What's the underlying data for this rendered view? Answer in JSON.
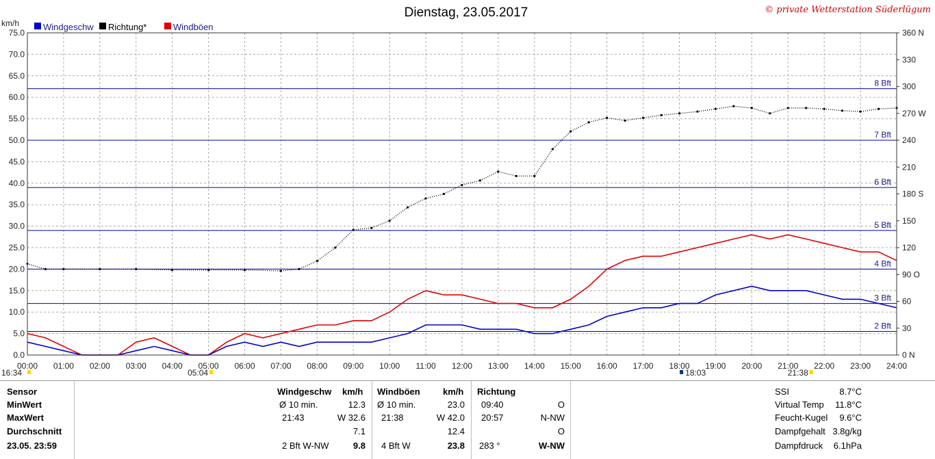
{
  "title": "Dienstag, 23.05.2017",
  "copyright": "© private Wetterstation Süderlügum",
  "legend": [
    {
      "label": "Windgeschw",
      "color": "#0000cc"
    },
    {
      "label": "Richtung*",
      "color": "#000000"
    },
    {
      "label": "Windböen",
      "color": "#e00000"
    }
  ],
  "chart_data": {
    "type": "line",
    "left_axis": {
      "unit": "km/h",
      "ylim": [
        0,
        75
      ],
      "ticks": [
        "0.0",
        "5.0",
        "10.0",
        "15.0",
        "20.0",
        "25.0",
        "30.0",
        "35.0",
        "40.0",
        "45.0",
        "50.0",
        "55.0",
        "60.0",
        "65.0",
        "70.0",
        "75.0"
      ]
    },
    "right_axis": {
      "unit": "°",
      "ylim": [
        0,
        360
      ],
      "ticks": [
        {
          "v": 0,
          "label": "0 N"
        },
        {
          "v": 30,
          "label": "30"
        },
        {
          "v": 60,
          "label": "60"
        },
        {
          "v": 90,
          "label": "90 O"
        },
        {
          "v": 120,
          "label": "120"
        },
        {
          "v": 150,
          "label": "150"
        },
        {
          "v": 180,
          "label": "180 S"
        },
        {
          "v": 210,
          "label": "210"
        },
        {
          "v": 240,
          "label": "240"
        },
        {
          "v": 270,
          "label": "270 W"
        },
        {
          "v": 300,
          "label": "300"
        },
        {
          "v": 330,
          "label": "330"
        },
        {
          "v": 360,
          "label": "360 N"
        }
      ]
    },
    "x_ticks": [
      "00:00",
      "01:00",
      "02:00",
      "03:00",
      "04:00",
      "05:00",
      "06:00",
      "07:00",
      "08:00",
      "09:00",
      "10:00",
      "11:00",
      "12:00",
      "13:00",
      "14:00",
      "15:00",
      "16:00",
      "17:00",
      "18:00",
      "19:00",
      "20:00",
      "21:00",
      "22:00",
      "23:00",
      "24:00"
    ],
    "beaufort": [
      {
        "label": "2 Bft",
        "kmh": 5.5
      },
      {
        "label": "3 Bft",
        "kmh": 12
      },
      {
        "label": "4 Bft",
        "kmh": 20
      },
      {
        "label": "5 Bft",
        "kmh": 29
      },
      {
        "label": "6 Bft",
        "kmh": 39
      },
      {
        "label": "7 Bft",
        "kmh": 50
      },
      {
        "label": "8 Bft",
        "kmh": 62
      }
    ],
    "markers": [
      "16:34",
      "05:04",
      "18:03",
      "21:38"
    ],
    "series": [
      {
        "name": "Windgeschw",
        "color": "#0000cc",
        "x": [
          0,
          0.5,
          1,
          1.5,
          2,
          2.5,
          3,
          3.5,
          4,
          4.5,
          5,
          5.5,
          6,
          6.5,
          7,
          7.5,
          8,
          8.5,
          9,
          9.5,
          10,
          10.5,
          11,
          11.5,
          12,
          12.5,
          13,
          13.5,
          14,
          14.5,
          15,
          15.5,
          16,
          16.5,
          17,
          17.5,
          18,
          18.5,
          19,
          19.5,
          20,
          20.5,
          21,
          21.5,
          22,
          22.5,
          23,
          23.5,
          24
        ],
        "values": [
          3,
          2,
          1,
          0,
          0,
          0,
          1,
          2,
          1,
          0,
          0,
          2,
          3,
          2,
          3,
          2,
          3,
          3,
          3,
          3,
          4,
          5,
          7,
          7,
          7,
          6,
          6,
          6,
          5,
          5,
          6,
          7,
          9,
          10,
          11,
          11,
          12,
          12,
          14,
          15,
          16,
          15,
          15,
          15,
          14,
          13,
          13,
          12,
          11
        ]
      },
      {
        "name": "Windböen",
        "color": "#e00000",
        "x": [
          0,
          0.5,
          1,
          1.5,
          2,
          2.5,
          3,
          3.5,
          4,
          4.5,
          5,
          5.5,
          6,
          6.5,
          7,
          7.5,
          8,
          8.5,
          9,
          9.5,
          10,
          10.5,
          11,
          11.5,
          12,
          12.5,
          13,
          13.5,
          14,
          14.5,
          15,
          15.5,
          16,
          16.5,
          17,
          17.5,
          18,
          18.5,
          19,
          19.5,
          20,
          20.5,
          21,
          21.5,
          22,
          22.5,
          23,
          23.5,
          24
        ],
        "values": [
          5,
          4,
          2,
          0,
          0,
          0,
          3,
          4,
          2,
          0,
          0,
          3,
          5,
          4,
          5,
          6,
          7,
          7,
          8,
          8,
          10,
          13,
          15,
          14,
          14,
          13,
          12,
          12,
          11,
          11,
          13,
          16,
          20,
          22,
          23,
          23,
          24,
          25,
          26,
          27,
          28,
          27,
          28,
          27,
          26,
          25,
          24,
          24,
          22
        ]
      },
      {
        "name": "Richtung*",
        "color": "#000000",
        "x": [
          0,
          0.5,
          1,
          2,
          3,
          4,
          5,
          6,
          7,
          7.5,
          8,
          8.5,
          9,
          9.5,
          10,
          10.5,
          11,
          11.5,
          12,
          12.5,
          13,
          13.5,
          14,
          14.5,
          15,
          15.5,
          16,
          16.5,
          17,
          17.5,
          18,
          18.5,
          19,
          19.5,
          20,
          20.5,
          21,
          21.5,
          22,
          22.5,
          23,
          23.5,
          24
        ],
        "values": [
          102,
          96,
          96,
          96,
          96,
          95,
          95,
          95,
          94,
          96,
          105,
          120,
          140,
          142,
          150,
          165,
          175,
          180,
          190,
          195,
          205,
          200,
          200,
          230,
          250,
          260,
          265,
          262,
          265,
          268,
          270,
          272,
          275,
          278,
          276,
          270,
          276,
          276,
          275,
          273,
          272,
          275,
          276
        ]
      }
    ]
  },
  "stats": {
    "sensor": {
      "header": "Sensor",
      "min": "MinWert",
      "max": "MaxWert",
      "avg": "Durchschnitt",
      "now": "23.05. 23:59"
    },
    "wind": {
      "header": "Windgeschw",
      "unit": "km/h",
      "min_label": "Ø 10 min.",
      "min_val": "12.3",
      "max_time": "21:43",
      "max_val": "W 32.6",
      "avg_val": "7.1",
      "now_label": "2 Bft W-NW",
      "now_val": "9.8"
    },
    "gust": {
      "header": "Windböen",
      "unit": "km/h",
      "min_label": "Ø 10 min.",
      "min_val": "23.0",
      "max_time": "21:38",
      "max_val": "W 42.0",
      "avg_val": "12.4",
      "now_label": "4 Bft W",
      "now_val": "23.8"
    },
    "dir": {
      "header": "Richtung",
      "min_time": "09:40",
      "min_val": "O",
      "max_time": "20:57",
      "max_val": "N-NW",
      "avg_val": "O",
      "now_deg": "283 °",
      "now_val": "W-NW"
    },
    "extra": [
      {
        "label": "SSI",
        "value": "8.7°C"
      },
      {
        "label": "Virtual Temp",
        "value": "11.8°C"
      },
      {
        "label": "Feucht-Kugel",
        "value": "9.6°C"
      },
      {
        "label": "Dampfgehalt",
        "value": "3.8g/kg"
      },
      {
        "label": "Dampfdruck",
        "value": "6.1hPa"
      }
    ]
  }
}
